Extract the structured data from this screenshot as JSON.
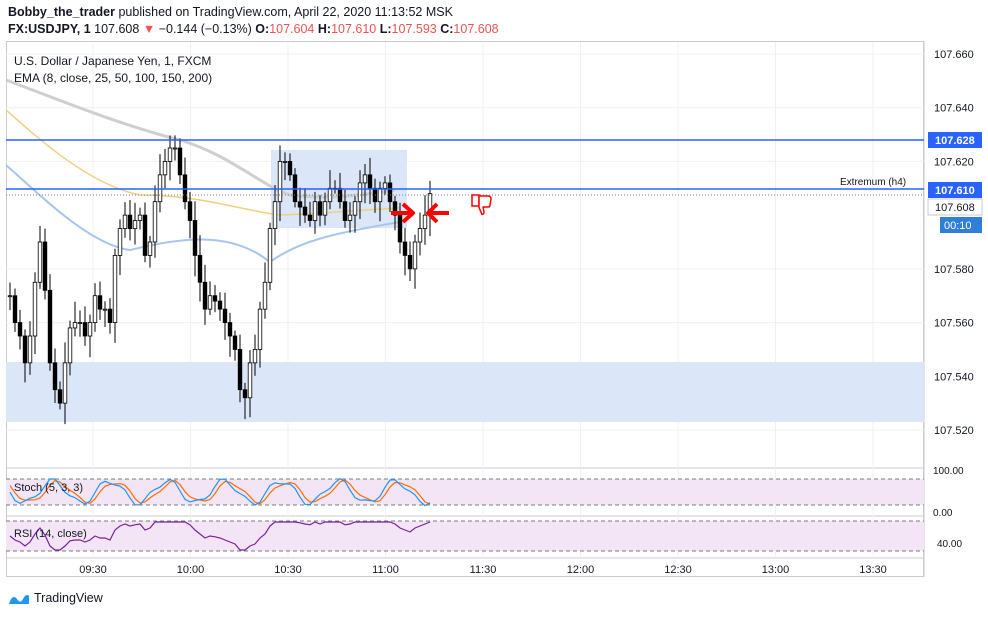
{
  "header": {
    "publisher": "Bobby_the_trader",
    "published_text": "published on TradingView.com, April 22, 2020 11:13:52 MSK",
    "symbol": "FX:USDJPY, 1",
    "last": "107.608",
    "change": "−0.144 (−0.13%)",
    "open_label": "O:",
    "open": "107.604",
    "high_label": "H:",
    "high": "107.610",
    "low_label": "L:",
    "low": "107.593",
    "close_label": "C:",
    "close": "107.608"
  },
  "legend": {
    "title": "U.S. Dollar / Japanese Yen, 1, FXCM",
    "ema": "EMA (8, close, 25, 50, 100, 150, 200)"
  },
  "price_axis": {
    "ticks": [
      "107.660",
      "107.640",
      "107.620",
      "107.580",
      "107.560",
      "107.540",
      "107.520"
    ],
    "tick_values": [
      107.66,
      107.64,
      107.62,
      107.58,
      107.56,
      107.54,
      107.52
    ],
    "badges": {
      "level_high": "107.628",
      "level_extremum": "107.610",
      "last_price": "107.608",
      "countdown": "00:10"
    }
  },
  "time_axis": {
    "labels": [
      "09:30",
      "10:00",
      "10:30",
      "11:00",
      "11:30",
      "12:00",
      "12:30",
      "13:00",
      "13:30"
    ]
  },
  "annotations": {
    "extremum_label": "Extremum (h4)"
  },
  "stoch": {
    "label": "Stoch (5, 3, 3)",
    "ticks": [
      "100.00",
      "0.00"
    ]
  },
  "rsi": {
    "label": "RSI (14, close)",
    "ticks": [
      "40.00"
    ]
  },
  "footer": {
    "brand": "TradingView"
  },
  "colors": {
    "up_candle": "#ffffff",
    "down_candle": "#000000",
    "level_line": "#2962ff",
    "zone_fill": "#dbe7f8",
    "arrow": "#ff0000",
    "stoch_k": "#2196f3",
    "stoch_d": "#ff6d00",
    "rsi_line": "#7b1fa2",
    "osc_fill": "#f3e5f5"
  },
  "chart_data": {
    "type": "candlestick",
    "symbol": "FX:USDJPY",
    "interval": "1",
    "ylim": [
      107.51,
      107.665
    ],
    "levels": [
      107.628,
      107.61
    ],
    "zones": [
      {
        "from_time": "10:27",
        "to_time": "11:07",
        "low": 107.597,
        "high": 107.626
      },
      {
        "from_time": "09:00",
        "to_time": "13:50",
        "low": 107.522,
        "high": 107.546
      }
    ],
    "series": [
      {
        "name": "",
        "values": [
          107.57,
          107.56,
          107.555,
          107.545,
          107.555,
          107.575,
          107.59,
          107.572,
          107.545,
          107.535,
          107.53,
          107.545,
          107.558,
          107.56,
          107.56,
          107.555,
          107.56,
          107.57,
          107.565,
          107.565,
          107.56,
          107.585,
          107.595,
          107.6,
          107.595,
          107.598,
          107.6,
          107.585,
          107.59,
          107.605,
          107.615,
          107.62,
          107.625,
          107.625,
          107.615,
          107.605,
          107.598,
          107.585,
          107.575,
          107.565,
          107.57,
          107.568,
          107.565,
          107.56,
          107.555,
          107.55,
          107.535,
          107.532,
          107.545,
          107.55,
          107.565,
          107.575,
          107.595,
          107.605,
          107.62,
          107.62,
          107.615,
          107.605,
          107.603,
          107.6,
          107.598,
          107.605,
          107.6,
          107.605,
          107.61,
          107.61,
          107.605,
          107.598,
          107.6,
          107.605,
          107.612,
          107.615,
          107.61,
          107.605,
          107.61,
          107.612,
          107.605,
          107.6,
          107.59,
          107.585,
          107.58,
          107.59,
          107.595,
          107.6,
          107.608
        ]
      }
    ]
  }
}
